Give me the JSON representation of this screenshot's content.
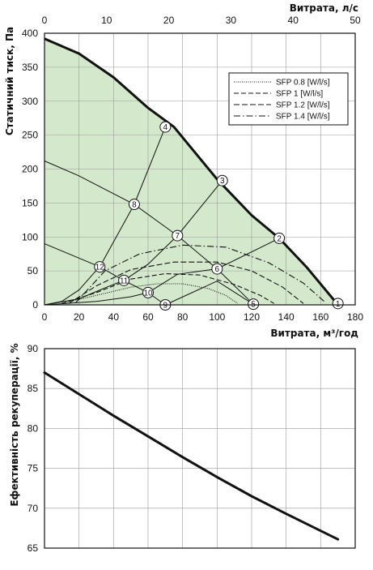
{
  "chart_data": [
    {
      "type": "line",
      "xlabel": "Витрата, м³/год",
      "x2label": "Витрата, л/с",
      "ylabel": "Статичний тиск, Па",
      "xlim": [
        0,
        180
      ],
      "x2lim": [
        0,
        50
      ],
      "ylim": [
        0,
        400
      ],
      "xticks": [
        0,
        20,
        40,
        60,
        80,
        100,
        120,
        140,
        160,
        180
      ],
      "x2ticks": [
        0,
        10,
        20,
        30,
        40,
        50
      ],
      "yticks": [
        0,
        50,
        100,
        150,
        200,
        250,
        300,
        350,
        400
      ],
      "grid": true,
      "legend_position": "top-right",
      "operating_area_color": "#d4e9cc",
      "max_curve": {
        "x": [
          0,
          20,
          40,
          60,
          75,
          100,
          120,
          136,
          152,
          170
        ],
        "y": [
          392,
          370,
          335,
          290,
          262,
          185,
          132,
          98,
          55,
          0
        ]
      },
      "sfp_curves": [
        {
          "name": "SFP 0.8 [W/l/s]",
          "dash": "1,1.5",
          "x": [
            10,
            30,
            50,
            65,
            80,
            95,
            105,
            112
          ],
          "y": [
            2,
            14,
            26,
            31,
            31,
            24,
            14,
            2
          ]
        },
        {
          "name": "SFP 1 [W/l/s]",
          "dash": "6,3",
          "x": [
            10,
            30,
            50,
            70,
            90,
            110,
            125,
            133
          ],
          "y": [
            2,
            18,
            38,
            46,
            44,
            30,
            14,
            2
          ]
        },
        {
          "name": "SFP 1.2 [W/l/s]",
          "dash": "7,3",
          "x": [
            14,
            30,
            50,
            75,
            100,
            120,
            138,
            150
          ],
          "y": [
            2,
            28,
            52,
            63,
            63,
            50,
            26,
            2
          ]
        },
        {
          "name": "SFP 1.4 [W/l/s]",
          "dash": "8,3,1.5,3",
          "x": [
            18,
            35,
            55,
            80,
            105,
            130,
            150,
            163
          ],
          "y": [
            3,
            50,
            75,
            88,
            85,
            62,
            32,
            3
          ]
        }
      ],
      "points": [
        {
          "label": "1",
          "x": 170,
          "y": 2
        },
        {
          "label": "2",
          "x": 136,
          "y": 98
        },
        {
          "label": "3",
          "x": 103,
          "y": 183
        },
        {
          "label": "4",
          "x": 70,
          "y": 262
        },
        {
          "label": "5",
          "x": 121,
          "y": 1
        },
        {
          "label": "6",
          "x": 100,
          "y": 53
        },
        {
          "label": "7",
          "x": 77,
          "y": 102
        },
        {
          "label": "8",
          "x": 52,
          "y": 148
        },
        {
          "label": "9",
          "x": 70,
          "y": 0
        },
        {
          "label": "10",
          "x": 60,
          "y": 18
        },
        {
          "label": "11",
          "x": 46,
          "y": 36
        },
        {
          "label": "12",
          "x": 32,
          "y": 56
        }
      ],
      "system_curves": [
        {
          "x": [
            0,
            10,
            20,
            28,
            32
          ],
          "y": [
            0,
            5,
            22,
            45,
            56
          ]
        },
        {
          "x": [
            0,
            20,
            35,
            46
          ],
          "y": [
            0,
            9,
            25,
            36
          ]
        },
        {
          "x": [
            0,
            30,
            50,
            60
          ],
          "y": [
            0,
            5,
            12,
            18
          ]
        },
        {
          "x": [
            0,
            60,
            70
          ],
          "y": [
            0,
            0,
            0
          ]
        }
      ],
      "speed_curves": [
        {
          "x": [
            0,
            32,
            46,
            60,
            70
          ],
          "y": [
            90,
            56,
            36,
            18,
            0
          ]
        },
        {
          "x": [
            0,
            20,
            52,
            77,
            100,
            121
          ],
          "y": [
            212,
            190,
            148,
            102,
            53,
            1
          ]
        },
        {
          "x": [
            32,
            52,
            70
          ],
          "y": [
            56,
            148,
            262
          ]
        },
        {
          "x": [
            46,
            60,
            77,
            103
          ],
          "y": [
            36,
            60,
            102,
            183
          ]
        },
        {
          "x": [
            60,
            77,
            100,
            136
          ],
          "y": [
            18,
            45,
            53,
            98
          ]
        },
        {
          "x": [
            70,
            100,
            121
          ],
          "y": [
            0,
            35,
            1
          ]
        }
      ]
    },
    {
      "type": "line",
      "ylabel": "Ефективність рекуперації, %",
      "xlim": [
        0,
        180
      ],
      "ylim": [
        65,
        90
      ],
      "yticks": [
        65,
        70,
        75,
        80,
        85,
        90
      ],
      "xgrid_count": 9,
      "grid": true,
      "series": [
        {
          "x": [
            0,
            20,
            40,
            60,
            80,
            100,
            120,
            140,
            170
          ],
          "y": [
            87.0,
            84.3,
            81.6,
            79.0,
            76.4,
            73.9,
            71.5,
            69.3,
            66.1
          ]
        }
      ]
    }
  ]
}
